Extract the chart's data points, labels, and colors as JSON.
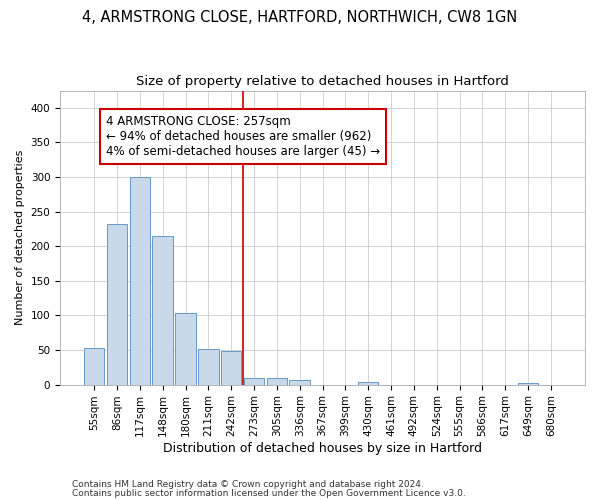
{
  "title1": "4, ARMSTRONG CLOSE, HARTFORD, NORTHWICH, CW8 1GN",
  "title2": "Size of property relative to detached houses in Hartford",
  "xlabel": "Distribution of detached houses by size in Hartford",
  "ylabel": "Number of detached properties",
  "bar_color": "#c8daea",
  "bar_edge_color": "#6699cc",
  "grid_color": "#cccccc",
  "background_color": "#ffffff",
  "plot_bg_color": "#ffffff",
  "categories": [
    "55sqm",
    "86sqm",
    "117sqm",
    "148sqm",
    "180sqm",
    "211sqm",
    "242sqm",
    "273sqm",
    "305sqm",
    "336sqm",
    "367sqm",
    "399sqm",
    "430sqm",
    "461sqm",
    "492sqm",
    "524sqm",
    "555sqm",
    "586sqm",
    "617sqm",
    "649sqm",
    "680sqm"
  ],
  "values": [
    53,
    232,
    300,
    215,
    103,
    52,
    49,
    10,
    10,
    6,
    0,
    0,
    4,
    0,
    0,
    0,
    0,
    0,
    0,
    3,
    0
  ],
  "vline_x": 6.5,
  "vline_color": "#cc0000",
  "annotation_text": "4 ARMSTRONG CLOSE: 257sqm\n← 94% of detached houses are smaller (962)\n4% of semi-detached houses are larger (45) →",
  "ylim": [
    0,
    425
  ],
  "yticks": [
    0,
    50,
    100,
    150,
    200,
    250,
    300,
    350,
    400
  ],
  "footer1": "Contains HM Land Registry data © Crown copyright and database right 2024.",
  "footer2": "Contains public sector information licensed under the Open Government Licence v3.0.",
  "title1_fontsize": 10.5,
  "title2_fontsize": 9.5,
  "xlabel_fontsize": 9,
  "ylabel_fontsize": 8,
  "tick_fontsize": 7.5,
  "annotation_fontsize": 8.5,
  "footer_fontsize": 6.5
}
